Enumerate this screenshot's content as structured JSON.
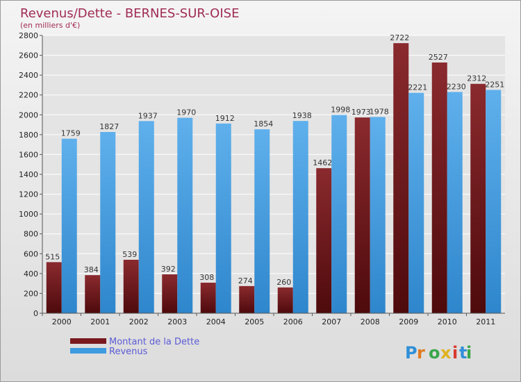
{
  "chart_data": {
    "type": "bar",
    "title": "Revenus/Dette - BERNES-SUR-OISE",
    "subtitle": "(en milliers d'€)",
    "categories": [
      "2000",
      "2001",
      "2002",
      "2003",
      "2004",
      "2005",
      "2006",
      "2007",
      "2008",
      "2009",
      "2010",
      "2011"
    ],
    "series": [
      {
        "name": "Montant de la Dette",
        "color": "#7a1a1e",
        "values": [
          515,
          384,
          539,
          392,
          308,
          274,
          260,
          1462,
          1973,
          2722,
          2527,
          2312
        ]
      },
      {
        "name": "Revenus",
        "color": "#3d9be0",
        "values": [
          1759,
          1827,
          1937,
          1970,
          1912,
          1854,
          1938,
          1998,
          1978,
          2221,
          2230,
          2251
        ]
      }
    ],
    "ylim": [
      0,
      2800
    ],
    "yticks": [
      0,
      200,
      400,
      600,
      800,
      1000,
      1200,
      1400,
      1600,
      1800,
      2000,
      2200,
      2400,
      2600,
      2800
    ],
    "grid": true,
    "legend": "bottom-left"
  },
  "logo": {
    "text": "Proxiti",
    "icon": "proxiti-logo"
  }
}
